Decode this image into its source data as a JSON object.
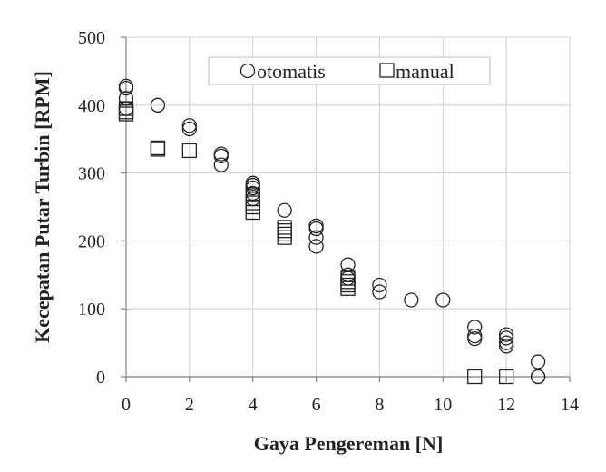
{
  "chart_data": {
    "type": "scatter",
    "xlabel": "Gaya Pengereman [N]",
    "ylabel": "Kecepatan Putar Turbin [RPM]",
    "xlim": [
      0,
      14
    ],
    "ylim": [
      0,
      500
    ],
    "xticks": [
      0,
      2,
      4,
      6,
      8,
      10,
      12,
      14
    ],
    "yticks": [
      0,
      100,
      200,
      300,
      400,
      500
    ],
    "grid": true,
    "legend_position": "top-right",
    "series": [
      {
        "name": "otomatis",
        "marker": "circle",
        "points": [
          [
            0,
            428
          ],
          [
            0,
            425
          ],
          [
            0,
            410
          ],
          [
            0,
            395
          ],
          [
            1,
            400
          ],
          [
            2,
            370
          ],
          [
            2,
            365
          ],
          [
            3,
            328
          ],
          [
            3,
            325
          ],
          [
            3,
            312
          ],
          [
            4,
            285
          ],
          [
            4,
            282
          ],
          [
            4,
            278
          ],
          [
            4,
            270
          ],
          [
            4,
            262
          ],
          [
            5,
            245
          ],
          [
            6,
            222
          ],
          [
            6,
            218
          ],
          [
            6,
            205
          ],
          [
            6,
            192
          ],
          [
            7,
            165
          ],
          [
            7,
            150
          ],
          [
            7,
            145
          ],
          [
            8,
            135
          ],
          [
            8,
            125
          ],
          [
            9,
            113
          ],
          [
            10,
            113
          ],
          [
            11,
            73
          ],
          [
            11,
            60
          ],
          [
            11,
            56
          ],
          [
            12,
            62
          ],
          [
            12,
            57
          ],
          [
            12,
            50
          ],
          [
            12,
            45
          ],
          [
            13,
            22
          ],
          [
            13,
            0
          ],
          [
            13,
            0
          ]
        ]
      },
      {
        "name": "manual",
        "marker": "square",
        "points": [
          [
            0,
            395
          ],
          [
            0,
            390
          ],
          [
            0,
            387
          ],
          [
            1,
            337
          ],
          [
            1,
            335
          ],
          [
            2,
            333
          ],
          [
            4,
            268
          ],
          [
            4,
            262
          ],
          [
            4,
            256
          ],
          [
            4,
            250
          ],
          [
            4,
            242
          ],
          [
            5,
            220
          ],
          [
            5,
            215
          ],
          [
            5,
            210
          ],
          [
            5,
            205
          ],
          [
            7,
            145
          ],
          [
            7,
            140
          ],
          [
            7,
            135
          ],
          [
            7,
            130
          ],
          [
            11,
            0
          ],
          [
            12,
            0
          ]
        ]
      }
    ]
  }
}
